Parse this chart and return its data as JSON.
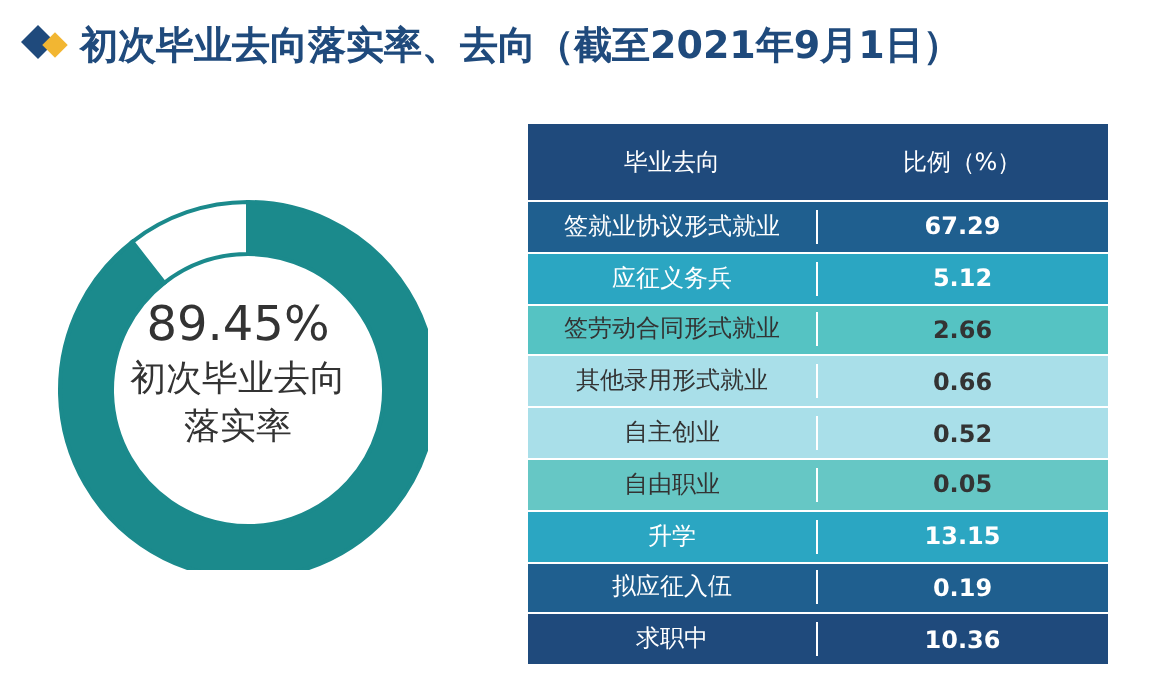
{
  "chart_data": [
    {
      "type": "donut",
      "title": "初次毕业去向落实率、去向（截至2021年9月1日）",
      "categories": [
        null,
        null
      ],
      "values": [
        89.45,
        10.55
      ],
      "colors": [
        "#1b8a8c",
        "#ffffff"
      ],
      "value_labels": [
        "89.45%",
        null
      ],
      "annotations": [
        "初次毕业去向落实率"
      ]
    },
    {
      "type": "other",
      "xlabel": "毕业去向",
      "ylabel": "比例（%）",
      "categories": [
        "签就业协议形式就业",
        "应征义务兵",
        "签劳动合同形式就业",
        "其他录用形式就业",
        "自主创业",
        "自由职业",
        "升学",
        "拟应征入伍",
        "求职中"
      ],
      "values": [
        67.29,
        5.12,
        2.66,
        0.66,
        0.52,
        0.05,
        13.15,
        0.19,
        10.36
      ],
      "colors": [
        "#1f5f8f",
        "#2ba6c2",
        "#55c3c3",
        "#a9dfe9",
        "#a9dfe9",
        "#66c7c5",
        "#2ba6c2",
        "#1f5f8f",
        "#1f4a7c"
      ],
      "data_labels": true
    }
  ]
}
